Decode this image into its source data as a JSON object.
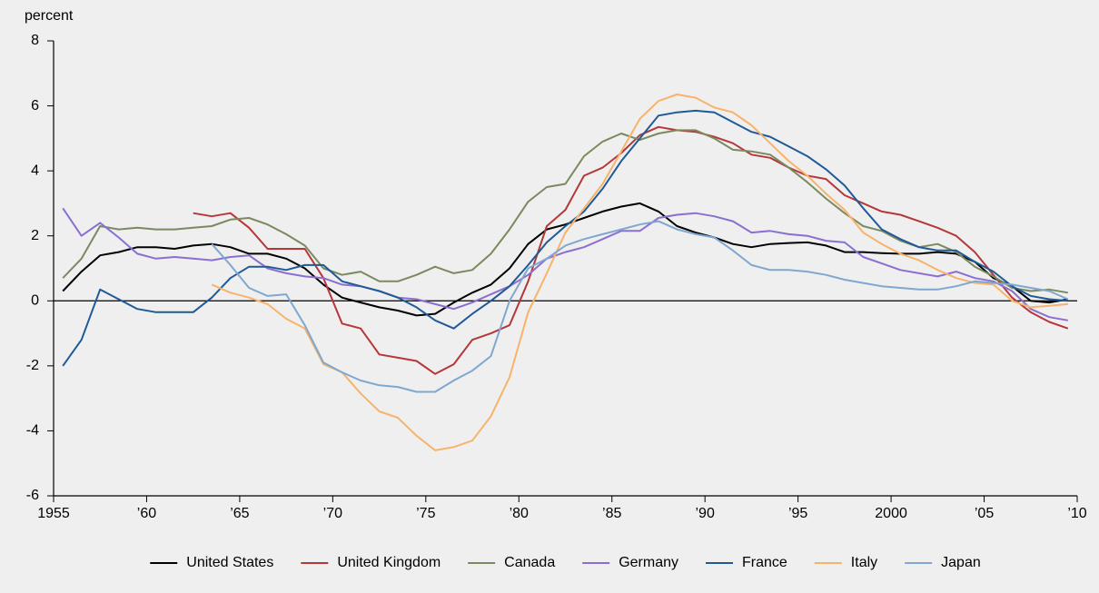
{
  "chart_data": {
    "type": "line",
    "y_label": "percent",
    "x": [
      1955.5,
      1956.5,
      1957.5,
      1958.5,
      1959.5,
      1960.5,
      1961.5,
      1962.5,
      1963.5,
      1964.5,
      1965.5,
      1966.5,
      1967.5,
      1968.5,
      1969.5,
      1970.5,
      1971.5,
      1972.5,
      1973.5,
      1974.5,
      1975.5,
      1976.5,
      1977.5,
      1978.5,
      1979.5,
      1980.5,
      1981.5,
      1982.5,
      1983.5,
      1984.5,
      1985.5,
      1986.5,
      1987.5,
      1988.5,
      1989.5,
      1990.5,
      1991.5,
      1992.5,
      1993.5,
      1994.5,
      1995.5,
      1996.5,
      1997.5,
      1998.5,
      1999.5,
      2000.5,
      2001.5,
      2002.5,
      2003.5,
      2004.5,
      2005.5,
      2006.5,
      2007.5,
      2008.5,
      2009.5
    ],
    "series": [
      {
        "name": "United States",
        "color": "#000000",
        "values": [
          0.3,
          0.9,
          1.4,
          1.5,
          1.65,
          1.65,
          1.6,
          1.7,
          1.75,
          1.65,
          1.45,
          1.45,
          1.3,
          1.0,
          0.5,
          0.1,
          -0.05,
          -0.2,
          -0.3,
          -0.45,
          -0.4,
          -0.05,
          0.25,
          0.5,
          1.0,
          1.75,
          2.2,
          2.35,
          2.55,
          2.75,
          2.9,
          3.0,
          2.75,
          2.3,
          2.1,
          1.95,
          1.75,
          1.65,
          1.75,
          1.78,
          1.8,
          1.7,
          1.5,
          1.5,
          1.47,
          1.45,
          1.45,
          1.5,
          1.45,
          1.2,
          0.7,
          0.45,
          0.0,
          -0.05,
          0.05
        ]
      },
      {
        "name": "United Kingdom",
        "color": "#b5373a",
        "values": [
          null,
          null,
          null,
          null,
          null,
          null,
          null,
          2.7,
          2.6,
          2.7,
          2.25,
          1.6,
          1.6,
          1.6,
          0.7,
          -0.7,
          -0.85,
          -1.65,
          -1.75,
          -1.85,
          -2.25,
          -1.95,
          -1.2,
          -1.0,
          -0.75,
          0.6,
          2.3,
          2.8,
          3.85,
          4.1,
          4.55,
          5.1,
          5.35,
          5.25,
          5.2,
          5.05,
          4.85,
          4.5,
          4.4,
          4.1,
          3.85,
          3.75,
          3.25,
          3.0,
          2.75,
          2.65,
          2.45,
          2.25,
          2.0,
          1.5,
          0.8,
          0.1,
          -0.35,
          -0.65,
          -0.85
        ]
      },
      {
        "name": "Canada",
        "color": "#7a8a5e",
        "values": [
          0.7,
          1.3,
          2.3,
          2.2,
          2.25,
          2.2,
          2.2,
          2.25,
          2.3,
          2.5,
          2.55,
          2.35,
          2.05,
          1.7,
          1.0,
          0.8,
          0.9,
          0.6,
          0.6,
          0.8,
          1.05,
          0.85,
          0.95,
          1.45,
          2.2,
          3.05,
          3.5,
          3.6,
          4.45,
          4.9,
          5.15,
          4.95,
          5.15,
          5.25,
          5.25,
          5.0,
          4.65,
          4.6,
          4.5,
          4.1,
          3.65,
          3.15,
          2.7,
          2.3,
          2.15,
          1.85,
          1.65,
          1.75,
          1.5,
          1.05,
          0.75,
          0.4,
          0.3,
          0.35,
          0.25
        ]
      },
      {
        "name": "Germany",
        "color": "#8a6fd0",
        "values": [
          2.85,
          2.0,
          2.4,
          1.95,
          1.45,
          1.3,
          1.35,
          1.3,
          1.25,
          1.35,
          1.4,
          1.0,
          0.85,
          0.75,
          0.7,
          0.5,
          0.45,
          0.3,
          0.1,
          0.05,
          -0.1,
          -0.25,
          -0.05,
          0.2,
          0.45,
          0.8,
          1.3,
          1.5,
          1.65,
          1.9,
          2.15,
          2.15,
          2.55,
          2.65,
          2.7,
          2.6,
          2.45,
          2.1,
          2.15,
          2.05,
          2.0,
          1.85,
          1.8,
          1.35,
          1.15,
          0.95,
          0.85,
          0.75,
          0.9,
          0.7,
          0.6,
          0.3,
          -0.25,
          -0.5,
          -0.6
        ]
      },
      {
        "name": "France",
        "color": "#1f5a96",
        "values": [
          -2.0,
          -1.2,
          0.35,
          0.05,
          -0.25,
          -0.35,
          -0.35,
          -0.35,
          0.1,
          0.7,
          1.05,
          1.05,
          0.95,
          1.1,
          1.1,
          0.6,
          0.45,
          0.3,
          0.1,
          -0.2,
          -0.6,
          -0.85,
          -0.4,
          0.0,
          0.45,
          1.1,
          1.8,
          2.3,
          2.75,
          3.45,
          4.3,
          5.0,
          5.7,
          5.8,
          5.85,
          5.8,
          5.5,
          5.2,
          5.05,
          4.75,
          4.45,
          4.05,
          3.55,
          2.85,
          2.2,
          1.9,
          1.65,
          1.55,
          1.55,
          1.2,
          0.9,
          0.45,
          0.15,
          0.05,
          0.0
        ]
      },
      {
        "name": "Italy",
        "color": "#f7b36b",
        "values": [
          null,
          null,
          null,
          null,
          null,
          null,
          null,
          null,
          0.5,
          0.25,
          0.1,
          -0.1,
          -0.55,
          -0.85,
          -1.95,
          -2.2,
          -2.85,
          -3.4,
          -3.6,
          -4.15,
          -4.6,
          -4.5,
          -4.3,
          -3.55,
          -2.35,
          -0.35,
          0.85,
          2.1,
          2.85,
          3.6,
          4.6,
          5.6,
          6.15,
          6.35,
          6.25,
          5.95,
          5.8,
          5.4,
          4.85,
          4.3,
          3.85,
          3.3,
          2.8,
          2.1,
          1.75,
          1.45,
          1.25,
          0.95,
          0.7,
          0.55,
          0.5,
          0.0,
          -0.2,
          -0.15,
          -0.1
        ]
      },
      {
        "name": "Japan",
        "color": "#7fa7cf",
        "values": [
          null,
          null,
          null,
          null,
          null,
          null,
          null,
          null,
          1.75,
          1.1,
          0.4,
          0.15,
          0.2,
          -0.75,
          -1.9,
          -2.2,
          -2.45,
          -2.6,
          -2.65,
          -2.8,
          -2.8,
          -2.45,
          -2.15,
          -1.7,
          0.0,
          1.0,
          1.3,
          1.7,
          1.9,
          2.05,
          2.2,
          2.35,
          2.45,
          2.2,
          2.05,
          1.95,
          1.55,
          1.1,
          0.95,
          0.95,
          0.9,
          0.8,
          0.65,
          0.55,
          0.45,
          0.4,
          0.35,
          0.35,
          0.45,
          0.6,
          0.55,
          0.5,
          0.4,
          0.3,
          0.05
        ]
      }
    ],
    "xlim": [
      1955,
      2010
    ],
    "xticks": [
      1955,
      {
        "value": 1960,
        "label": "’60"
      },
      {
        "value": 1965,
        "label": "’65"
      },
      {
        "value": 1970,
        "label": "’70"
      },
      {
        "value": 1975,
        "label": "’75"
      },
      {
        "value": 1980,
        "label": "’80"
      },
      {
        "value": 1985,
        "label": "’85"
      },
      {
        "value": 1990,
        "label": "’90"
      },
      {
        "value": 1995,
        "label": "’95"
      },
      2000,
      {
        "value": 2005,
        "label": "’05"
      },
      {
        "value": 2010,
        "label": "’10"
      }
    ],
    "ylim": [
      -6,
      8
    ],
    "yticks": [
      -6,
      -4,
      -2,
      0,
      2,
      4,
      6,
      8
    ],
    "legend": "bottom"
  }
}
